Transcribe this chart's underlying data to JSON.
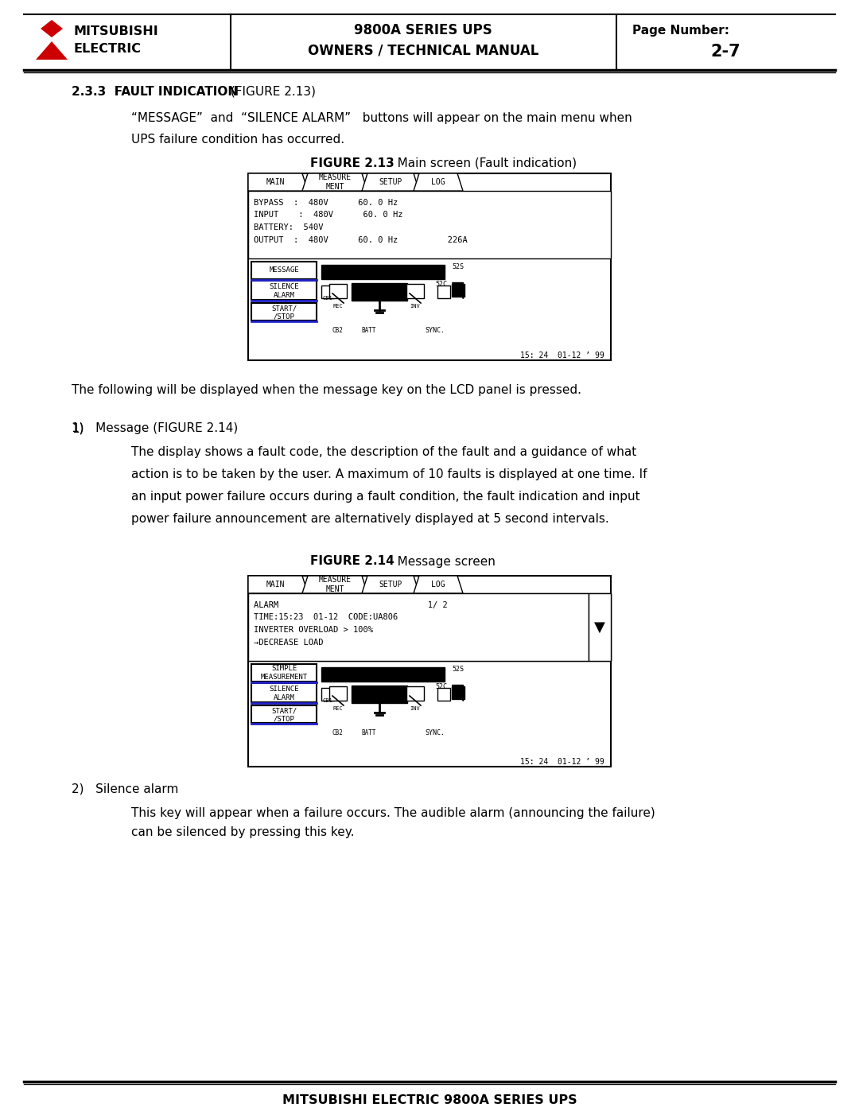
{
  "page_bg": "#ffffff",
  "header_logo_color": "#cc0000",
  "header_title1": "9800A SERIES UPS",
  "header_title2": "OWNERS / TECHNICAL MANUAL",
  "header_page_label": "Page Number:",
  "header_page_num": "2-7",
  "header_company1": "MITSUBISHI",
  "header_company2": "ELECTRIC",
  "section_title_bold": "2.3.3  FAULT INDICATION",
  "section_title_normal": " (FIGURE 2.13)",
  "para1": "“MESSAGE”  and  “SILENCE ALARM”   buttons will appear on the main menu when",
  "para2": "UPS failure condition has occurred.",
  "fig1_title_bold": "FIGURE 2.13",
  "fig1_title_normal": "   Main screen (Fault indication)",
  "fig1_line1": "BYPASS  :  480V      60. 0 Hz",
  "fig1_line2": "INPUT    :  480V      60. 0 Hz",
  "fig1_line3": "BATTERY:  540V",
  "fig1_line4": "OUTPUT  :  480V      60. 0 Hz          226A",
  "fig1_btn1": "MESSAGE",
  "fig1_btn2": "SILENCE\nALARM",
  "fig1_btn3": "START/\n/STOP",
  "fig1_timestamp": "15: 24  01-12 ’ 99",
  "mid_para": "The following will be displayed when the message key on the LCD panel is pressed.",
  "msg_num": "1)   Message (FIGURE 2.14)",
  "msg_para1": "The display shows a fault code, the description of the fault and a guidance of what",
  "msg_para2": "action is to be taken by the user. A maximum of 10 faults is displayed at one time. If",
  "msg_para3": "an input power failure occurs during a fault condition, the fault indication and input",
  "msg_para4": "power failure announcement are alternatively displayed at 5 second intervals.",
  "fig2_title_bold": "FIGURE 2.14",
  "fig2_title_normal": "   Message screen",
  "fig2_line1": "ALARM                              1/ 2",
  "fig2_line2": "TIME:15:23  01-12  CODE:UA806",
  "fig2_line3": "INVERTER OVERLOAD > 100%",
  "fig2_line4": "→DECREASE LOAD",
  "fig2_btn1": "SIMPLE\nMEASUREMENT",
  "fig2_btn2": "SILENCE\nALARM",
  "fig2_btn3": "START/\n/STOP",
  "fig2_timestamp": "15: 24  01-12 ’ 99",
  "silence_num": "2)   Silence alarm",
  "silence_para1": "This key will appear when a failure occurs. The audible alarm (announcing the failure)",
  "silence_para2": "can be silenced by pressing this key.",
  "footer_text": "MITSUBISHI ELECTRIC 9800A SERIES UPS",
  "tab_labels": [
    "MAIN",
    "MEASURE\nMENT",
    "SETUP",
    "LOG"
  ]
}
